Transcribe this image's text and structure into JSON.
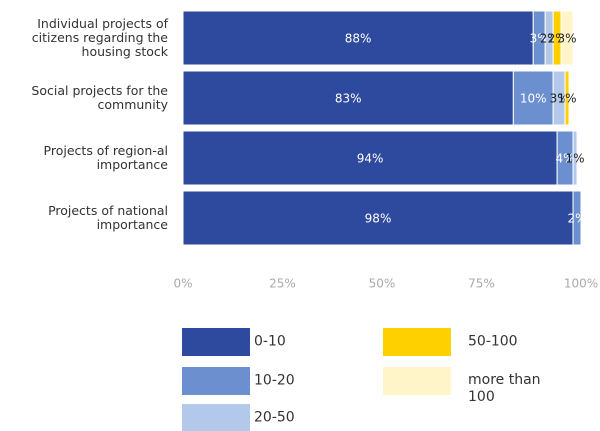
{
  "chart_data": {
    "type": "stacked-bar-horizontal",
    "categories": [
      "Individual projects of citizens regarding the housing stock",
      "Social projects for the community",
      "Projects of region-al importance",
      "Projects of national importance"
    ],
    "series": [
      {
        "name": "0-10",
        "color": "#2e4a9e",
        "values": [
          88,
          83,
          94,
          98
        ],
        "value_labels": [
          "88%",
          "83%",
          "94%",
          "98%"
        ]
      },
      {
        "name": "10-20",
        "color": "#6b8fcf",
        "values": [
          3,
          10,
          4,
          2
        ],
        "value_labels": [
          "3%",
          "10%",
          "4%",
          "2%"
        ]
      },
      {
        "name": "20-50",
        "color": "#b3c9ec",
        "values": [
          2,
          3,
          1,
          null
        ],
        "value_labels": [
          "2%",
          "3%",
          "1%",
          null
        ]
      },
      {
        "name": "50-100",
        "color": "#ffd000",
        "values": [
          2,
          1,
          null,
          null
        ],
        "value_labels": [
          "2%",
          "1%",
          null,
          null
        ]
      },
      {
        "name": "more than 100",
        "color": "#fff5c8",
        "values": [
          3,
          null,
          null,
          null
        ],
        "value_labels": [
          "3%",
          null,
          null,
          null
        ]
      }
    ],
    "xlim": [
      0,
      100
    ],
    "xticks": [
      {
        "value": 0,
        "label": "0%"
      },
      {
        "value": 25,
        "label": "25%"
      },
      {
        "value": 50,
        "label": "50%"
      },
      {
        "value": 75,
        "label": "75%"
      },
      {
        "value": 100,
        "label": "100%"
      }
    ]
  }
}
